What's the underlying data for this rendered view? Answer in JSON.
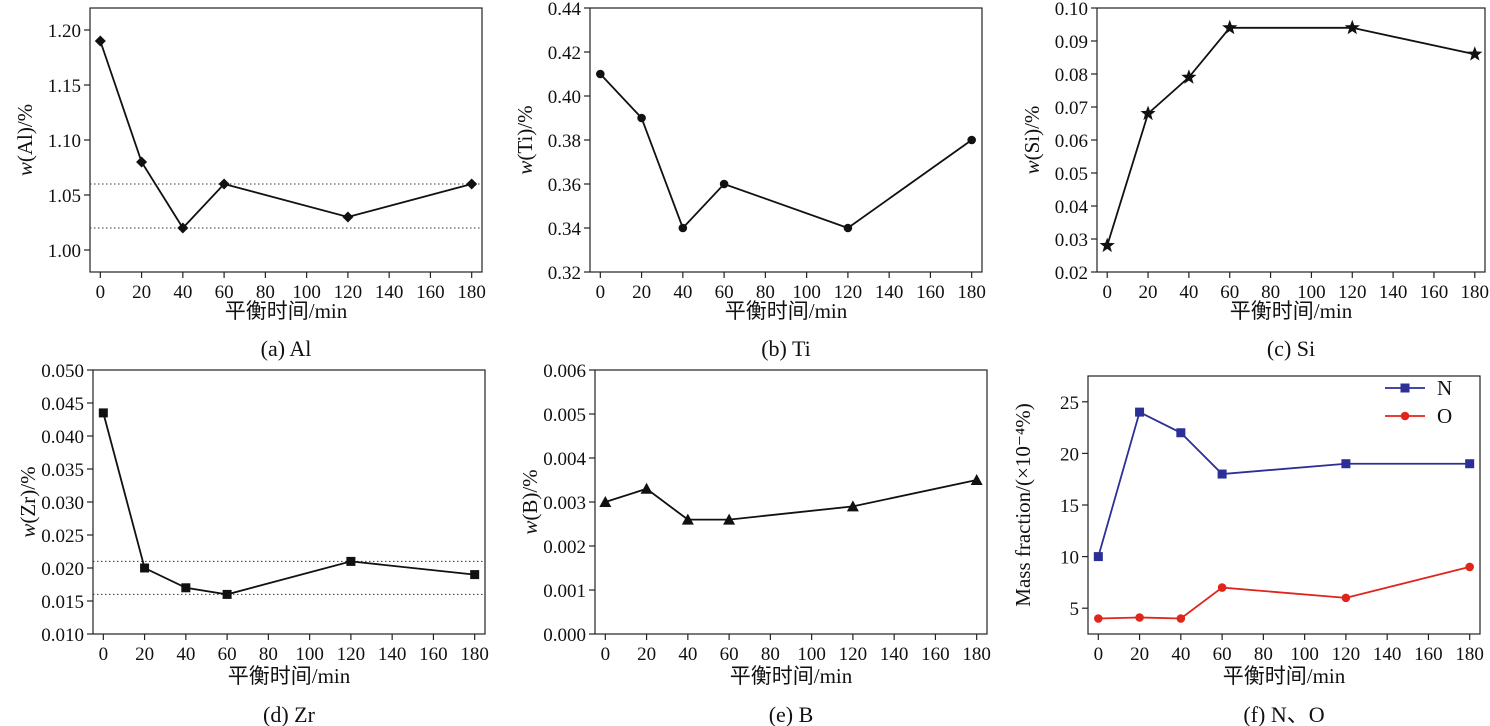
{
  "figure": {
    "xlabel": "平衡时间/min",
    "x_ticks": [
      "0",
      "20",
      "40",
      "60",
      "80",
      "100",
      "120",
      "140",
      "160",
      "180"
    ],
    "x_range": [
      -5,
      185
    ]
  },
  "chart_data": [
    {
      "type": "line",
      "caption": "(a) Al",
      "ylabel": "w(Al)/%",
      "ylabel_italic": "w",
      "ylabel_rest": "(Al)/%",
      "xlabel": "平衡时间/min",
      "ylim": [
        0.98,
        1.22
      ],
      "y_ticks": [
        "1.00",
        "1.05",
        "1.10",
        "1.15",
        "1.20"
      ],
      "marker": "diamond",
      "color": "#111111",
      "x": [
        0,
        20,
        40,
        60,
        120,
        180
      ],
      "values": [
        1.19,
        1.08,
        1.02,
        1.06,
        1.03,
        1.06
      ],
      "reference_lines": [
        1.06,
        1.02
      ]
    },
    {
      "type": "line",
      "caption": "(b) Ti",
      "ylabel": "w(Ti)/%",
      "ylabel_italic": "w",
      "ylabel_rest": "(Ti)/%",
      "xlabel": "平衡时间/min",
      "ylim": [
        0.32,
        0.44
      ],
      "y_ticks": [
        "0.32",
        "0.34",
        "0.36",
        "0.38",
        "0.40",
        "0.42",
        "0.44"
      ],
      "marker": "circle",
      "color": "#111111",
      "x": [
        0,
        20,
        40,
        60,
        120,
        180
      ],
      "values": [
        0.41,
        0.39,
        0.34,
        0.36,
        0.34,
        0.38
      ],
      "reference_lines": []
    },
    {
      "type": "line",
      "caption": "(c) Si",
      "ylabel": "w(Si)/%",
      "ylabel_italic": "w",
      "ylabel_rest": "(Si)/%",
      "xlabel": "平衡时间/min",
      "ylim": [
        0.02,
        0.1
      ],
      "y_ticks": [
        "0.02",
        "0.03",
        "0.04",
        "0.05",
        "0.06",
        "0.07",
        "0.08",
        "0.09",
        "0.10"
      ],
      "marker": "star",
      "color": "#111111",
      "x": [
        0,
        20,
        40,
        60,
        120,
        180
      ],
      "values": [
        0.028,
        0.068,
        0.079,
        0.094,
        0.094,
        0.086
      ],
      "reference_lines": []
    },
    {
      "type": "line",
      "caption": "(d) Zr",
      "ylabel": "w(Zr)/%",
      "ylabel_italic": "w",
      "ylabel_rest": "(Zr)/%",
      "xlabel": "平衡时间/min",
      "ylim": [
        0.01,
        0.05
      ],
      "y_ticks": [
        "0.010",
        "0.015",
        "0.020",
        "0.025",
        "0.030",
        "0.035",
        "0.040",
        "0.045",
        "0.050"
      ],
      "marker": "square",
      "color": "#111111",
      "x": [
        0,
        20,
        40,
        60,
        120,
        180
      ],
      "values": [
        0.0435,
        0.02,
        0.017,
        0.016,
        0.021,
        0.019
      ],
      "reference_lines": [
        0.021,
        0.016
      ]
    },
    {
      "type": "line",
      "caption": "(e) B",
      "ylabel": "w(B)/%",
      "ylabel_italic": "w",
      "ylabel_rest": "(B)/%",
      "xlabel": "平衡时间/min",
      "ylim": [
        0.0,
        0.006
      ],
      "y_ticks": [
        "0.000",
        "0.001",
        "0.002",
        "0.003",
        "0.004",
        "0.005",
        "0.006"
      ],
      "marker": "triangle",
      "color": "#111111",
      "x": [
        0,
        20,
        40,
        60,
        120,
        180
      ],
      "values": [
        0.003,
        0.0033,
        0.0026,
        0.0026,
        0.0029,
        0.0035
      ],
      "reference_lines": []
    },
    {
      "type": "line",
      "caption": "(f) N、O",
      "ylabel": "Mass fraction/(×10⁻⁴%)",
      "ylabel_italic": "",
      "ylabel_rest": "Mass fraction/(×10⁻⁴%)",
      "xlabel": "平衡时间/min",
      "ylim": [
        2.5,
        27.5
      ],
      "y_ticks": [
        "5",
        "10",
        "15",
        "20",
        "25"
      ],
      "legend_position": "top-right",
      "series": [
        {
          "name": "N",
          "marker": "square",
          "color": "#2b2f96",
          "x": [
            0,
            20,
            40,
            60,
            120,
            180
          ],
          "values": [
            10,
            24,
            22,
            18,
            19,
            19
          ]
        },
        {
          "name": "O",
          "marker": "circle",
          "color": "#e0251b",
          "x": [
            0,
            20,
            40,
            60,
            120,
            180
          ],
          "values": [
            4,
            4.1,
            4,
            7,
            6,
            9
          ]
        }
      ]
    }
  ]
}
